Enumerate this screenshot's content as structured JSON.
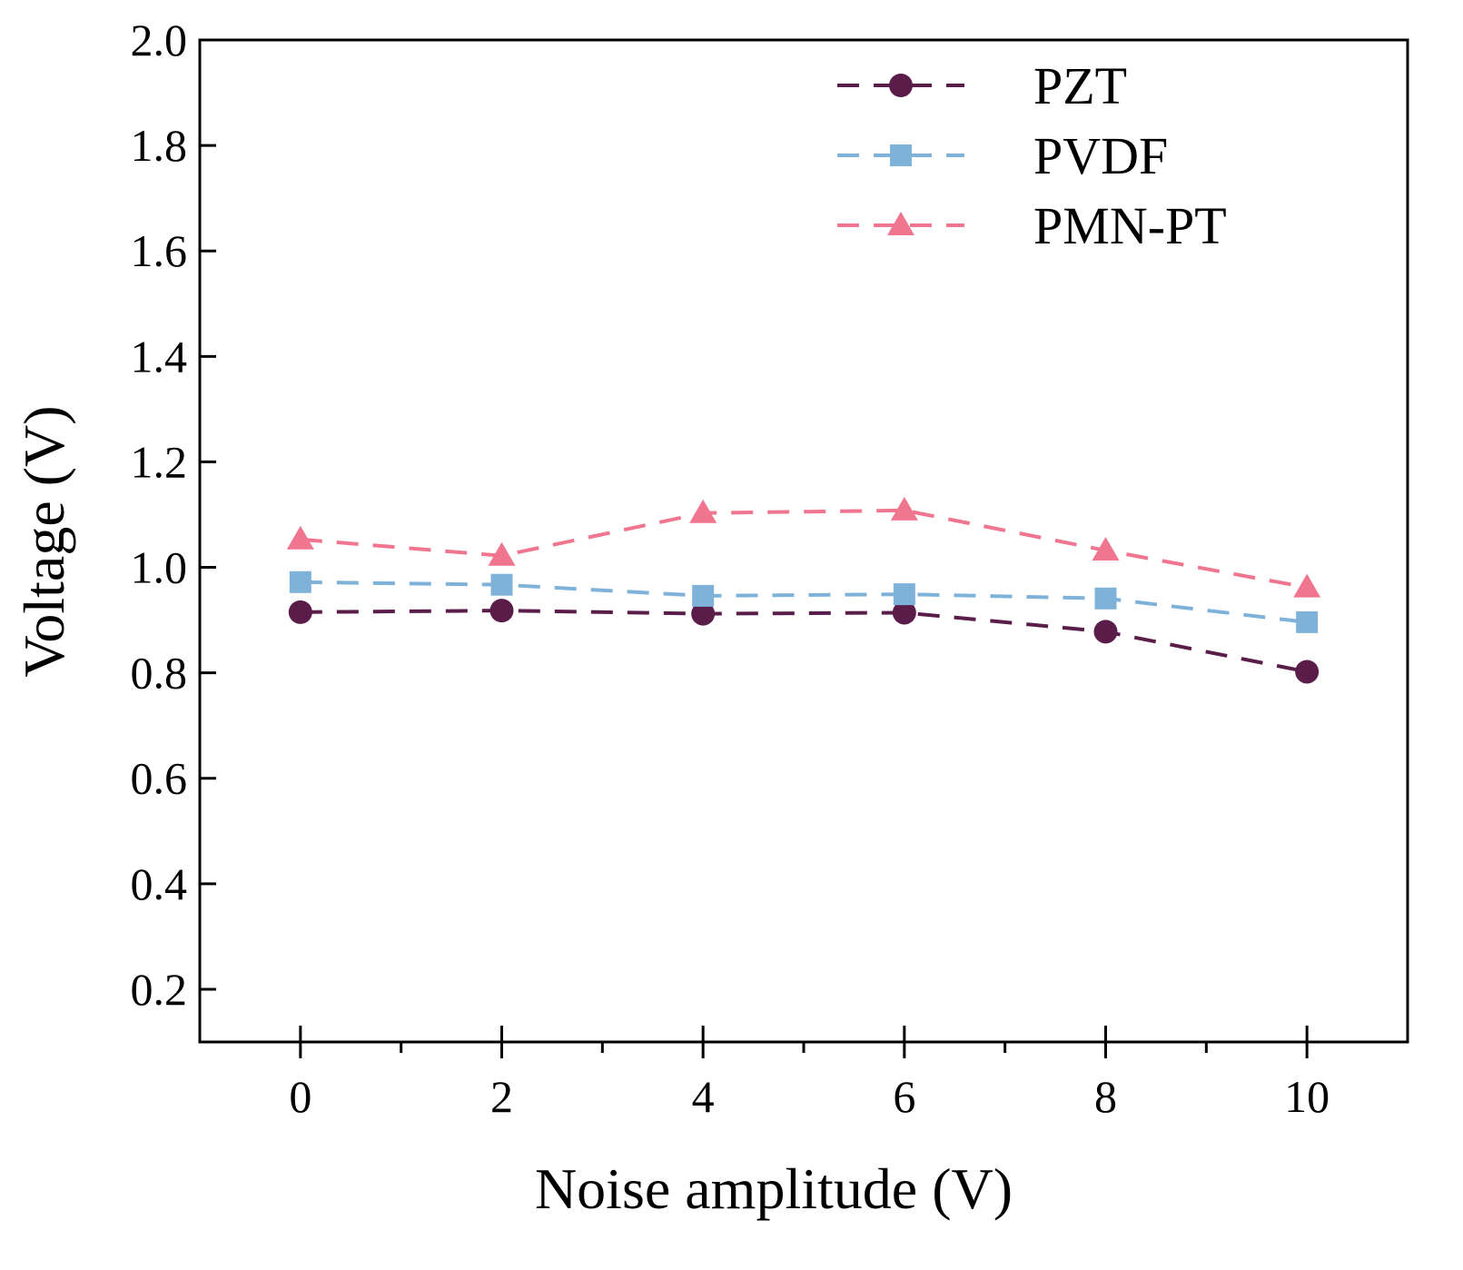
{
  "chart_data": {
    "type": "line",
    "title": "",
    "xlabel": "Noise amplitude (V)",
    "ylabel": "Voltage (V)",
    "xlim": [
      -1,
      11
    ],
    "ylim": [
      0.1,
      2.0
    ],
    "xticks": [
      0,
      2,
      4,
      6,
      8,
      10
    ],
    "xtick_labels": [
      "0",
      "2",
      "4",
      "6",
      "8",
      "10"
    ],
    "xticks_minor": [
      1,
      3,
      5,
      7,
      9
    ],
    "yticks": [
      0.2,
      0.4,
      0.6,
      0.8,
      1.0,
      1.2,
      1.4,
      1.6,
      1.8,
      2.0
    ],
    "ytick_labels": [
      "0.2",
      "0.4",
      "0.6",
      "0.8",
      "1.0",
      "1.2",
      "1.4",
      "1.6",
      "1.8",
      "2.0"
    ],
    "grid": false,
    "legend_position": "top-right",
    "x": [
      0,
      2,
      4,
      6,
      8,
      10
    ],
    "series": [
      {
        "name": "PZT",
        "marker": "circle",
        "color": "#5a1d4a",
        "values": [
          0.915,
          0.918,
          0.912,
          0.914,
          0.878,
          0.802
        ]
      },
      {
        "name": "PVDF",
        "marker": "square",
        "color": "#7fb2d9",
        "values": [
          0.972,
          0.967,
          0.946,
          0.949,
          0.941,
          0.896
        ]
      },
      {
        "name": "PMN-PT",
        "marker": "triangle",
        "color": "#f0758e",
        "values": [
          1.053,
          1.022,
          1.103,
          1.108,
          1.032,
          0.962
        ]
      }
    ]
  }
}
